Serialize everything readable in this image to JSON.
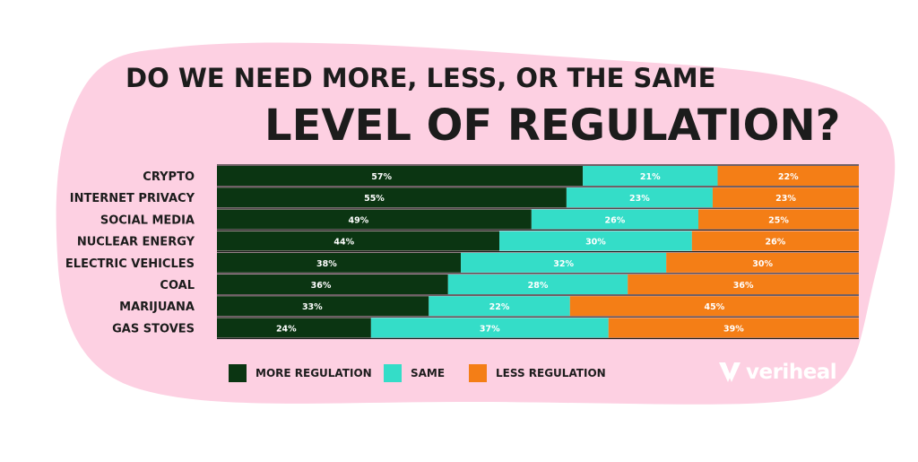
{
  "chart_data": {
    "type": "bar",
    "stacked": true,
    "orientation": "horizontal",
    "title_line1": "DO WE NEED MORE, LESS, OR THE SAME",
    "title_line2": "LEVEL OF REGULATION?",
    "categories": [
      "CRYPTO",
      "INTERNET PRIVACY",
      "SOCIAL MEDIA",
      "NUCLEAR ENERGY",
      "ELECTRIC VEHICLES",
      "COAL",
      "MARIJUANA",
      "GAS STOVES"
    ],
    "series": [
      {
        "name": "MORE REGULATION",
        "color": "#0b3512",
        "values": [
          57,
          55,
          49,
          44,
          38,
          36,
          33,
          24
        ],
        "labels": [
          "57%",
          "55%",
          "49%",
          "44%",
          "38%",
          "36%",
          "33%",
          "24%"
        ]
      },
      {
        "name": "SAME",
        "color": "#34ddc8",
        "values": [
          21,
          23,
          26,
          30,
          32,
          28,
          22,
          37
        ],
        "labels": [
          "21%",
          "23%",
          "26%",
          "30%",
          "32%",
          "28%",
          "22%",
          "37%"
        ]
      },
      {
        "name": "LESS REGULATION",
        "color": "#f47e16",
        "values": [
          22,
          23,
          25,
          26,
          30,
          36,
          45,
          39
        ],
        "labels": [
          "22%",
          "23%",
          "25%",
          "26%",
          "30%",
          "36%",
          "45%",
          "39%"
        ]
      }
    ],
    "legend_position": "bottom"
  },
  "brand": {
    "name": "veriheal",
    "background_color": "#fdd0e2"
  }
}
